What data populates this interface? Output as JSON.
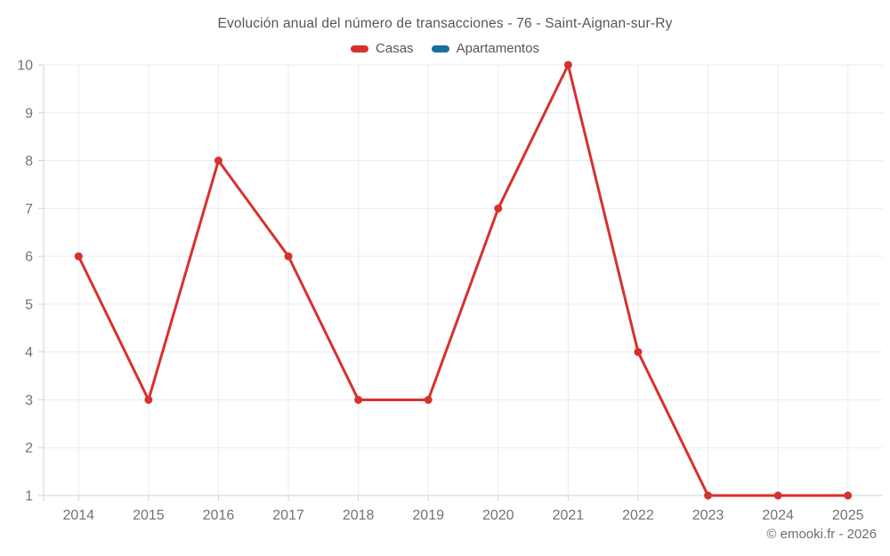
{
  "header": {
    "title": "Evolución anual del número de transacciones - 76 - Saint-Aignan-sur-Ry"
  },
  "legend": {
    "items": [
      {
        "label": "Casas",
        "color": "#d7312d"
      },
      {
        "label": "Apartamentos",
        "color": "#17719f"
      }
    ]
  },
  "footer": {
    "credit": "© emooki.fr - 2026"
  },
  "chart_data": {
    "type": "line",
    "title": "Evolución anual del número de transacciones - 76 - Saint-Aignan-sur-Ry",
    "categories": [
      "2014",
      "2015",
      "2016",
      "2017",
      "2018",
      "2019",
      "2020",
      "2021",
      "2022",
      "2023",
      "2024",
      "2025"
    ],
    "series": [
      {
        "name": "Casas",
        "color": "#d7312d",
        "values": [
          6,
          3,
          8,
          6,
          3,
          3,
          7,
          10,
          4,
          1,
          1,
          1
        ]
      },
      {
        "name": "Apartamentos",
        "color": "#17719f",
        "values": []
      }
    ],
    "xlabel": "",
    "ylabel": "",
    "ylim": [
      1,
      10
    ],
    "yticks": [
      1,
      2,
      3,
      4,
      5,
      6,
      7,
      8,
      9,
      10
    ],
    "grid": true,
    "legend_position": "top",
    "axis_text_color": "#737373",
    "grid_color": "#ececec",
    "axis_line_color": "#d2d2d2"
  }
}
